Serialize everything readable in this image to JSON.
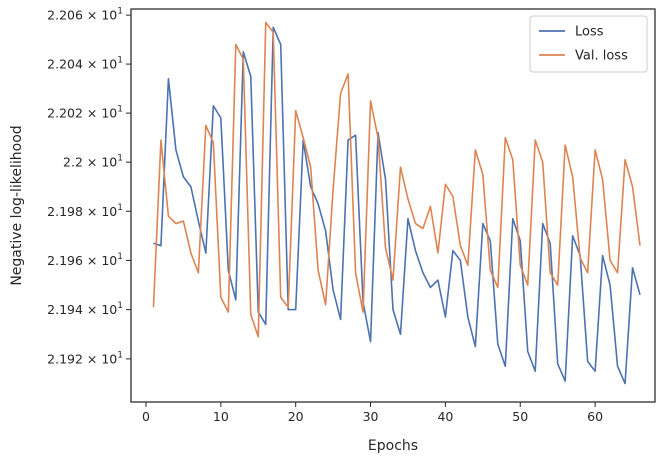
{
  "chart_data": {
    "type": "line",
    "xlabel": "Epochs",
    "ylabel": "Negative log-likelihood",
    "xlim": [
      -2,
      68
    ],
    "ylim": [
      21.9025,
      22.0625
    ],
    "y_scale": "log",
    "grid": false,
    "legend_position": "top-right",
    "x_ticks": [
      0,
      10,
      20,
      30,
      40,
      50,
      60
    ],
    "x_tick_labels": [
      "0",
      "10",
      "20",
      "30",
      "40",
      "50",
      "60"
    ],
    "y_ticks": [
      21.92,
      21.94,
      21.96,
      21.98,
      22.0,
      22.02,
      22.04,
      22.06
    ],
    "y_tick_labels": [
      {
        "mantissa": "2.192",
        "base": "10",
        "exp": "1"
      },
      {
        "mantissa": "2.194",
        "base": "10",
        "exp": "1"
      },
      {
        "mantissa": "2.196",
        "base": "10",
        "exp": "1"
      },
      {
        "mantissa": "2.198",
        "base": "10",
        "exp": "1"
      },
      {
        "mantissa": "2.2",
        "base": "10",
        "exp": "1"
      },
      {
        "mantissa": "2.202",
        "base": "10",
        "exp": "1"
      },
      {
        "mantissa": "2.204",
        "base": "10",
        "exp": "1"
      },
      {
        "mantissa": "2.206",
        "base": "10",
        "exp": "1"
      }
    ],
    "x": [
      1,
      2,
      3,
      4,
      5,
      6,
      7,
      8,
      9,
      10,
      11,
      12,
      13,
      14,
      15,
      16,
      17,
      18,
      19,
      20,
      21,
      22,
      23,
      24,
      25,
      26,
      27,
      28,
      29,
      30,
      31,
      32,
      33,
      34,
      35,
      36,
      37,
      38,
      39,
      40,
      41,
      42,
      43,
      44,
      45,
      46,
      47,
      48,
      49,
      50,
      51,
      52,
      53,
      54,
      55,
      56,
      57,
      58,
      59,
      60,
      61,
      62,
      63,
      64,
      65,
      66
    ],
    "series": [
      {
        "name": "Loss",
        "color": "#4c72b0",
        "values": [
          21.967,
          21.966,
          22.034,
          22.005,
          21.994,
          21.99,
          21.976,
          21.963,
          22.023,
          22.018,
          21.956,
          21.944,
          22.045,
          22.035,
          21.939,
          21.934,
          22.055,
          22.048,
          21.94,
          21.94,
          22.009,
          21.99,
          21.983,
          21.972,
          21.948,
          21.936,
          22.009,
          22.011,
          21.943,
          21.927,
          22.012,
          21.993,
          21.94,
          21.93,
          21.977,
          21.964,
          21.955,
          21.949,
          21.952,
          21.937,
          21.964,
          21.96,
          21.937,
          21.925,
          21.975,
          21.968,
          21.926,
          21.917,
          21.977,
          21.968,
          21.923,
          21.915,
          21.975,
          21.967,
          21.918,
          21.911,
          21.97,
          21.962,
          21.919,
          21.915,
          21.962,
          21.95,
          21.917,
          21.91,
          21.957,
          21.946
        ]
      },
      {
        "name": "Val. loss",
        "color": "#dd8452",
        "values": [
          21.941,
          22.009,
          21.978,
          21.975,
          21.976,
          21.963,
          21.955,
          22.015,
          22.008,
          21.945,
          21.939,
          22.048,
          22.042,
          21.938,
          21.929,
          22.057,
          22.053,
          21.945,
          21.941,
          22.021,
          22.01,
          21.998,
          21.956,
          21.942,
          21.989,
          22.028,
          22.036,
          21.955,
          21.939,
          22.025,
          22.01,
          21.965,
          21.952,
          21.998,
          21.985,
          21.975,
          21.973,
          21.982,
          21.963,
          21.991,
          21.986,
          21.966,
          21.958,
          22.005,
          21.995,
          21.956,
          21.949,
          22.01,
          22.001,
          21.958,
          21.95,
          22.009,
          22.0,
          21.955,
          21.95,
          22.007,
          21.994,
          21.961,
          21.955,
          22.005,
          21.993,
          21.96,
          21.955,
          22.001,
          21.99,
          21.966
        ]
      }
    ]
  }
}
